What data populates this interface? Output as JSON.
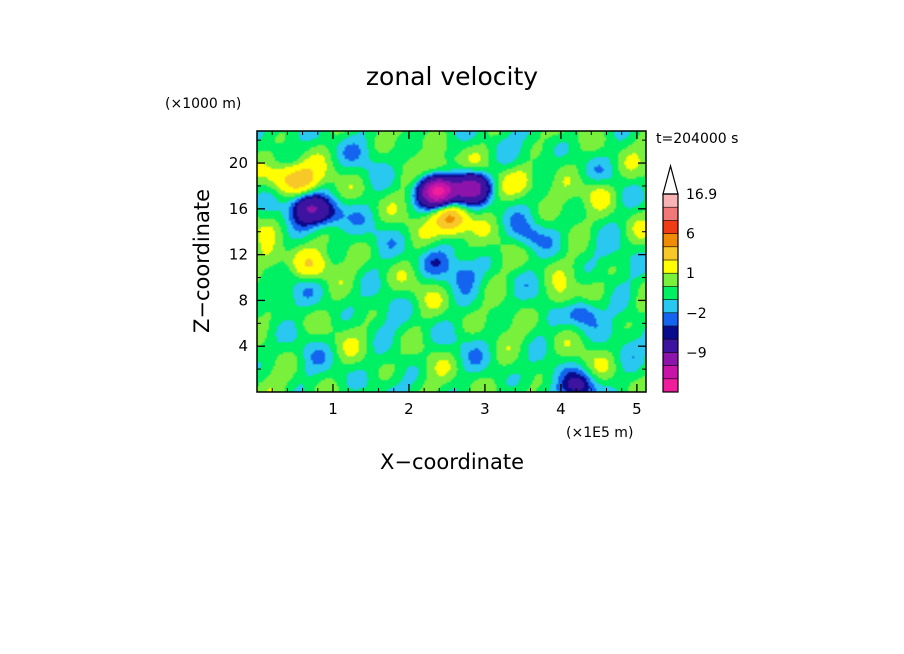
{
  "chart_data": {
    "type": "heatmap",
    "title": "zonal velocity",
    "xlabel": "X−coordinate",
    "ylabel": "Z−coordinate",
    "x_unit": "(×1E5 m)",
    "y_unit": "(×1000 m)",
    "time_label": "t=204000 s",
    "xlim": [
      0,
      5.12
    ],
    "ylim": [
      0,
      22.8
    ],
    "x_ticks": [
      1,
      2,
      3,
      4,
      5
    ],
    "x_tick_labels": [
      "1",
      "2",
      "3",
      "4",
      "5"
    ],
    "y_ticks": [
      4,
      8,
      12,
      16,
      20
    ],
    "y_tick_labels": [
      "4",
      "8",
      "12",
      "16",
      "20"
    ],
    "colorbar": {
      "levels": [
        -15,
        -12,
        -9,
        -6,
        -3,
        -2,
        -1,
        0,
        1,
        2,
        4,
        6,
        10,
        13,
        16.9
      ],
      "colors": [
        "#f01e9c",
        "#c814a8",
        "#8c14aa",
        "#3c14a0",
        "#0a0a8c",
        "#1464f0",
        "#28c8f0",
        "#00f064",
        "#78f03c",
        "#ffff00",
        "#f8c828",
        "#f08c00",
        "#f03c14",
        "#f07878",
        "#f8b4b4"
      ],
      "extend_max": true,
      "labels": [
        {
          "text": "16.9",
          "at": 16.9
        },
        {
          "text": "6",
          "at": 6
        },
        {
          "text": "1",
          "at": 1
        },
        {
          "text": "−2",
          "at": -2
        },
        {
          "text": "−9",
          "at": -9
        }
      ]
    },
    "features": [
      {
        "x": 2.4,
        "z": 17.5,
        "value": -10
      },
      {
        "x": 2.35,
        "z": 17.5,
        "value": -4
      },
      {
        "x": 2.75,
        "z": 17.6,
        "value": -3
      },
      {
        "x": 2.85,
        "z": 18.0,
        "value": -6
      },
      {
        "x": 0.95,
        "z": 15.5,
        "value": -3
      },
      {
        "x": 0.72,
        "z": 16.0,
        "value": -4
      },
      {
        "x": 0.62,
        "z": 16.3,
        "value": -2
      },
      {
        "x": 2.55,
        "z": 15.3,
        "value": 5
      },
      {
        "x": 2.55,
        "z": 14.6,
        "value": 2
      },
      {
        "x": 0.6,
        "z": 18.5,
        "value": 4
      },
      {
        "x": 0.35,
        "z": 18.7,
        "value": 3
      },
      {
        "x": 2.4,
        "z": 19.3,
        "value": 3
      },
      {
        "x": 2.7,
        "z": 10.5,
        "value": -1.5
      },
      {
        "x": 2.35,
        "z": 11.5,
        "value": -1.5
      },
      {
        "x": 3.55,
        "z": 13.5,
        "value": -1.5
      },
      {
        "x": 0.25,
        "z": 8.0,
        "value": -1.5
      },
      {
        "x": 0.7,
        "z": 11.0,
        "value": 3
      },
      {
        "x": 0.2,
        "z": 11.5,
        "value": 2
      },
      {
        "x": 3.5,
        "z": 18.5,
        "value": 2
      },
      {
        "x": 4.5,
        "z": 17.5,
        "value": 2
      },
      {
        "x": 4.25,
        "z": 0.5,
        "value": -4
      },
      {
        "x": 4.3,
        "z": 7.0,
        "value": -3
      },
      {
        "x": 4.0,
        "z": 8.0,
        "value": 2
      },
      {
        "x": 1.45,
        "z": 21.2,
        "value": -0.5
      }
    ]
  }
}
